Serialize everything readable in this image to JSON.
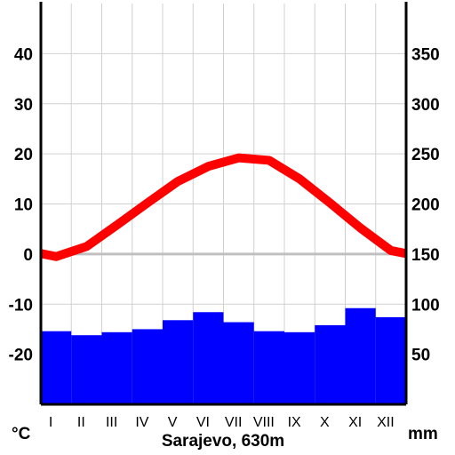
{
  "chart_data": {
    "type": "climate-diagram",
    "title": "Sarajevo, 630m",
    "categories": [
      "I",
      "II",
      "III",
      "IV",
      "V",
      "VI",
      "VII",
      "VIII",
      "IX",
      "X",
      "XI",
      "XII"
    ],
    "temperature": {
      "unit": "°C",
      "values": [
        -0.5,
        1.5,
        5.8,
        10.2,
        14.5,
        17.5,
        19.2,
        18.7,
        15.0,
        10.2,
        5.2,
        0.7
      ],
      "ylim": [
        -30,
        50
      ],
      "ticks": [
        -20,
        -10,
        0,
        10,
        20,
        30,
        40
      ],
      "color": "#ff0000"
    },
    "precipitation": {
      "unit": "mm",
      "values": [
        73,
        69,
        72,
        75,
        84,
        92,
        82,
        73,
        72,
        79,
        96,
        87
      ],
      "ylim": [
        0,
        400
      ],
      "ticks": [
        50,
        100,
        150,
        200,
        250,
        300,
        350
      ],
      "color": "#0000ff"
    },
    "zero_line_color": "#c0c0c0",
    "grid": true
  }
}
